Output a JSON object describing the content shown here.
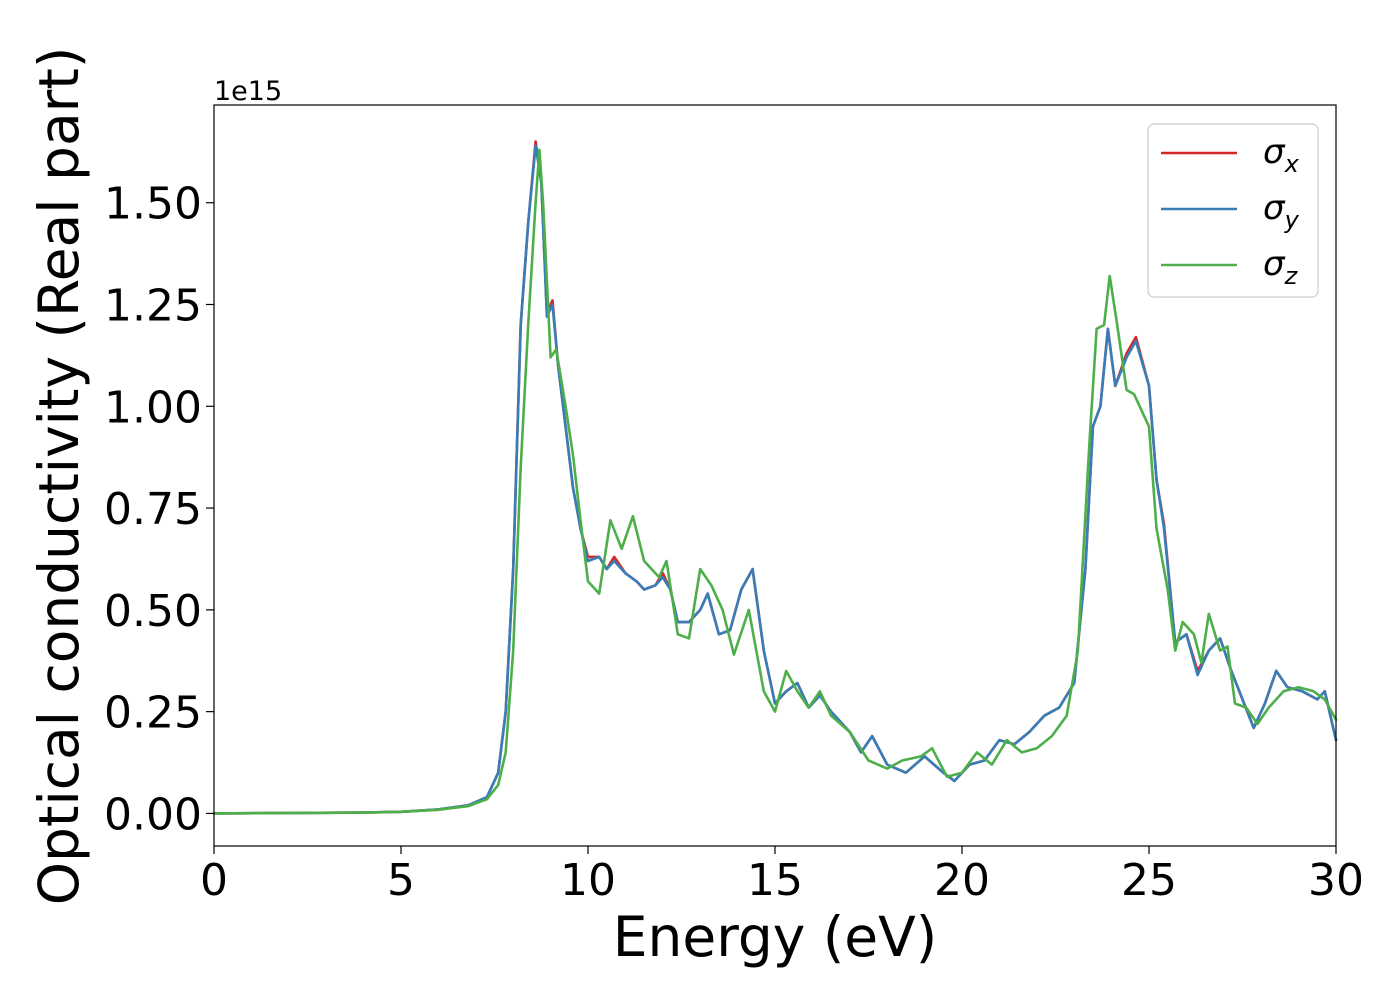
{
  "chart_data": {
    "type": "line",
    "title": "",
    "xlabel": "Energy (eV)",
    "ylabel": "Optical conductivity (Real part)",
    "y_offset_text": "1e15",
    "y_multiplier": 1000000000000000.0,
    "xlim": [
      0,
      30
    ],
    "ylim": [
      -0.08,
      1.74
    ],
    "xticks": [
      0,
      5,
      10,
      15,
      20,
      25,
      30
    ],
    "xtick_labels": [
      "0",
      "5",
      "10",
      "15",
      "20",
      "25",
      "30"
    ],
    "yticks": [
      0,
      0.25,
      0.5,
      0.75,
      1.0,
      1.25,
      1.5
    ],
    "ytick_labels": [
      "0.00",
      "0.25",
      "0.50",
      "0.75",
      "1.00",
      "1.25",
      "1.50"
    ],
    "grid": false,
    "legend_position": "top-right",
    "series": [
      {
        "name": "σ_x",
        "legend_base": "σ",
        "legend_sub": "x",
        "color": "#d62728",
        "points": [
          [
            0,
            0.0
          ],
          [
            4,
            0.002
          ],
          [
            5,
            0.004
          ],
          [
            6,
            0.01
          ],
          [
            6.8,
            0.02
          ],
          [
            7.3,
            0.04
          ],
          [
            7.6,
            0.1
          ],
          [
            7.8,
            0.25
          ],
          [
            8.0,
            0.6
          ],
          [
            8.2,
            1.2
          ],
          [
            8.4,
            1.45
          ],
          [
            8.6,
            1.65
          ],
          [
            8.75,
            1.55
          ],
          [
            8.9,
            1.23
          ],
          [
            9.05,
            1.26
          ],
          [
            9.2,
            1.1
          ],
          [
            9.4,
            0.95
          ],
          [
            9.6,
            0.8
          ],
          [
            9.8,
            0.7
          ],
          [
            10.0,
            0.63
          ],
          [
            10.3,
            0.63
          ],
          [
            10.5,
            0.6
          ],
          [
            10.7,
            0.63
          ],
          [
            11.0,
            0.59
          ],
          [
            11.3,
            0.57
          ],
          [
            11.5,
            0.55
          ],
          [
            11.8,
            0.56
          ],
          [
            12.0,
            0.59
          ],
          [
            12.2,
            0.55
          ],
          [
            12.4,
            0.47
          ],
          [
            12.7,
            0.47
          ],
          [
            13.0,
            0.5
          ],
          [
            13.2,
            0.54
          ],
          [
            13.5,
            0.44
          ],
          [
            13.8,
            0.45
          ],
          [
            14.1,
            0.55
          ],
          [
            14.4,
            0.6
          ],
          [
            14.7,
            0.4
          ],
          [
            15.0,
            0.27
          ],
          [
            15.3,
            0.3
          ],
          [
            15.6,
            0.32
          ],
          [
            15.9,
            0.26
          ],
          [
            16.2,
            0.29
          ],
          [
            16.5,
            0.25
          ],
          [
            17.0,
            0.2
          ],
          [
            17.3,
            0.15
          ],
          [
            17.6,
            0.19
          ],
          [
            18.0,
            0.12
          ],
          [
            18.5,
            0.1
          ],
          [
            19.0,
            0.14
          ],
          [
            19.5,
            0.1
          ],
          [
            19.8,
            0.08
          ],
          [
            20.2,
            0.12
          ],
          [
            20.6,
            0.13
          ],
          [
            21.0,
            0.18
          ],
          [
            21.4,
            0.17
          ],
          [
            21.8,
            0.2
          ],
          [
            22.2,
            0.24
          ],
          [
            22.6,
            0.26
          ],
          [
            23.0,
            0.32
          ],
          [
            23.3,
            0.6
          ],
          [
            23.5,
            0.95
          ],
          [
            23.7,
            1.0
          ],
          [
            23.9,
            1.19
          ],
          [
            24.1,
            1.05
          ],
          [
            24.4,
            1.13
          ],
          [
            24.65,
            1.17
          ],
          [
            25.0,
            1.05
          ],
          [
            25.2,
            0.82
          ],
          [
            25.4,
            0.71
          ],
          [
            25.7,
            0.42
          ],
          [
            26.0,
            0.44
          ],
          [
            26.3,
            0.35
          ],
          [
            26.6,
            0.4
          ],
          [
            26.9,
            0.43
          ],
          [
            27.2,
            0.35
          ],
          [
            27.5,
            0.28
          ],
          [
            27.8,
            0.21
          ],
          [
            28.1,
            0.27
          ],
          [
            28.4,
            0.35
          ],
          [
            28.7,
            0.31
          ],
          [
            29.1,
            0.3
          ],
          [
            29.5,
            0.28
          ],
          [
            29.7,
            0.3
          ],
          [
            30,
            0.18
          ]
        ]
      },
      {
        "name": "σ_y",
        "legend_base": "σ",
        "legend_sub": "y",
        "color": "#377eb8",
        "points": [
          [
            0,
            0.0
          ],
          [
            4,
            0.002
          ],
          [
            5,
            0.004
          ],
          [
            6,
            0.01
          ],
          [
            6.8,
            0.02
          ],
          [
            7.3,
            0.04
          ],
          [
            7.6,
            0.1
          ],
          [
            7.8,
            0.25
          ],
          [
            8.0,
            0.6
          ],
          [
            8.2,
            1.2
          ],
          [
            8.4,
            1.45
          ],
          [
            8.6,
            1.64
          ],
          [
            8.75,
            1.55
          ],
          [
            8.9,
            1.22
          ],
          [
            9.05,
            1.25
          ],
          [
            9.2,
            1.1
          ],
          [
            9.4,
            0.95
          ],
          [
            9.6,
            0.8
          ],
          [
            9.8,
            0.7
          ],
          [
            10.0,
            0.62
          ],
          [
            10.3,
            0.63
          ],
          [
            10.5,
            0.6
          ],
          [
            10.7,
            0.62
          ],
          [
            11.0,
            0.59
          ],
          [
            11.3,
            0.57
          ],
          [
            11.5,
            0.55
          ],
          [
            11.8,
            0.56
          ],
          [
            12.0,
            0.58
          ],
          [
            12.2,
            0.55
          ],
          [
            12.4,
            0.47
          ],
          [
            12.7,
            0.47
          ],
          [
            13.0,
            0.5
          ],
          [
            13.2,
            0.54
          ],
          [
            13.5,
            0.44
          ],
          [
            13.8,
            0.45
          ],
          [
            14.1,
            0.55
          ],
          [
            14.4,
            0.6
          ],
          [
            14.7,
            0.4
          ],
          [
            15.0,
            0.27
          ],
          [
            15.3,
            0.3
          ],
          [
            15.6,
            0.32
          ],
          [
            15.9,
            0.26
          ],
          [
            16.2,
            0.29
          ],
          [
            16.5,
            0.25
          ],
          [
            17.0,
            0.2
          ],
          [
            17.3,
            0.15
          ],
          [
            17.6,
            0.19
          ],
          [
            18.0,
            0.12
          ],
          [
            18.5,
            0.1
          ],
          [
            19.0,
            0.14
          ],
          [
            19.5,
            0.1
          ],
          [
            19.8,
            0.08
          ],
          [
            20.2,
            0.12
          ],
          [
            20.6,
            0.13
          ],
          [
            21.0,
            0.18
          ],
          [
            21.4,
            0.17
          ],
          [
            21.8,
            0.2
          ],
          [
            22.2,
            0.24
          ],
          [
            22.6,
            0.26
          ],
          [
            23.0,
            0.32
          ],
          [
            23.3,
            0.6
          ],
          [
            23.5,
            0.95
          ],
          [
            23.7,
            1.0
          ],
          [
            23.9,
            1.19
          ],
          [
            24.1,
            1.05
          ],
          [
            24.4,
            1.12
          ],
          [
            24.65,
            1.16
          ],
          [
            25.0,
            1.05
          ],
          [
            25.2,
            0.82
          ],
          [
            25.4,
            0.7
          ],
          [
            25.7,
            0.42
          ],
          [
            26.0,
            0.44
          ],
          [
            26.3,
            0.34
          ],
          [
            26.6,
            0.4
          ],
          [
            26.9,
            0.43
          ],
          [
            27.2,
            0.35
          ],
          [
            27.5,
            0.28
          ],
          [
            27.8,
            0.21
          ],
          [
            28.1,
            0.27
          ],
          [
            28.4,
            0.35
          ],
          [
            28.7,
            0.31
          ],
          [
            29.1,
            0.3
          ],
          [
            29.5,
            0.28
          ],
          [
            29.7,
            0.3
          ],
          [
            30,
            0.18
          ]
        ]
      },
      {
        "name": "σ_z",
        "legend_base": "σ",
        "legend_sub": "z",
        "color": "#4daf4a",
        "points": [
          [
            0,
            0.0
          ],
          [
            4,
            0.002
          ],
          [
            5,
            0.004
          ],
          [
            6,
            0.009
          ],
          [
            6.8,
            0.018
          ],
          [
            7.3,
            0.035
          ],
          [
            7.6,
            0.07
          ],
          [
            7.8,
            0.15
          ],
          [
            8.0,
            0.4
          ],
          [
            8.2,
            0.85
          ],
          [
            8.4,
            1.2
          ],
          [
            8.6,
            1.5
          ],
          [
            8.7,
            1.63
          ],
          [
            8.8,
            1.5
          ],
          [
            9.0,
            1.12
          ],
          [
            9.15,
            1.14
          ],
          [
            9.4,
            1.0
          ],
          [
            9.6,
            0.88
          ],
          [
            9.8,
            0.72
          ],
          [
            10.0,
            0.57
          ],
          [
            10.3,
            0.54
          ],
          [
            10.6,
            0.72
          ],
          [
            10.9,
            0.65
          ],
          [
            11.2,
            0.73
          ],
          [
            11.5,
            0.62
          ],
          [
            11.9,
            0.58
          ],
          [
            12.1,
            0.62
          ],
          [
            12.4,
            0.44
          ],
          [
            12.7,
            0.43
          ],
          [
            13.0,
            0.6
          ],
          [
            13.3,
            0.56
          ],
          [
            13.6,
            0.5
          ],
          [
            13.9,
            0.39
          ],
          [
            14.3,
            0.5
          ],
          [
            14.7,
            0.3
          ],
          [
            15.0,
            0.25
          ],
          [
            15.3,
            0.35
          ],
          [
            15.6,
            0.3
          ],
          [
            15.9,
            0.26
          ],
          [
            16.2,
            0.3
          ],
          [
            16.5,
            0.24
          ],
          [
            17.0,
            0.2
          ],
          [
            17.5,
            0.13
          ],
          [
            18.0,
            0.11
          ],
          [
            18.4,
            0.13
          ],
          [
            18.9,
            0.14
          ],
          [
            19.2,
            0.16
          ],
          [
            19.6,
            0.09
          ],
          [
            20.0,
            0.1
          ],
          [
            20.4,
            0.15
          ],
          [
            20.8,
            0.12
          ],
          [
            21.2,
            0.18
          ],
          [
            21.6,
            0.15
          ],
          [
            22.0,
            0.16
          ],
          [
            22.4,
            0.19
          ],
          [
            22.8,
            0.24
          ],
          [
            23.1,
            0.4
          ],
          [
            23.4,
            0.9
          ],
          [
            23.6,
            1.19
          ],
          [
            23.8,
            1.2
          ],
          [
            23.95,
            1.32
          ],
          [
            24.15,
            1.2
          ],
          [
            24.4,
            1.04
          ],
          [
            24.6,
            1.03
          ],
          [
            24.85,
            0.98
          ],
          [
            25.0,
            0.95
          ],
          [
            25.2,
            0.7
          ],
          [
            25.5,
            0.55
          ],
          [
            25.7,
            0.4
          ],
          [
            25.9,
            0.47
          ],
          [
            26.2,
            0.44
          ],
          [
            26.4,
            0.37
          ],
          [
            26.6,
            0.49
          ],
          [
            26.9,
            0.4
          ],
          [
            27.1,
            0.41
          ],
          [
            27.3,
            0.27
          ],
          [
            27.6,
            0.26
          ],
          [
            27.9,
            0.22
          ],
          [
            28.2,
            0.26
          ],
          [
            28.6,
            0.3
          ],
          [
            29.0,
            0.31
          ],
          [
            29.4,
            0.3
          ],
          [
            29.7,
            0.28
          ],
          [
            30,
            0.23
          ]
        ]
      }
    ]
  }
}
